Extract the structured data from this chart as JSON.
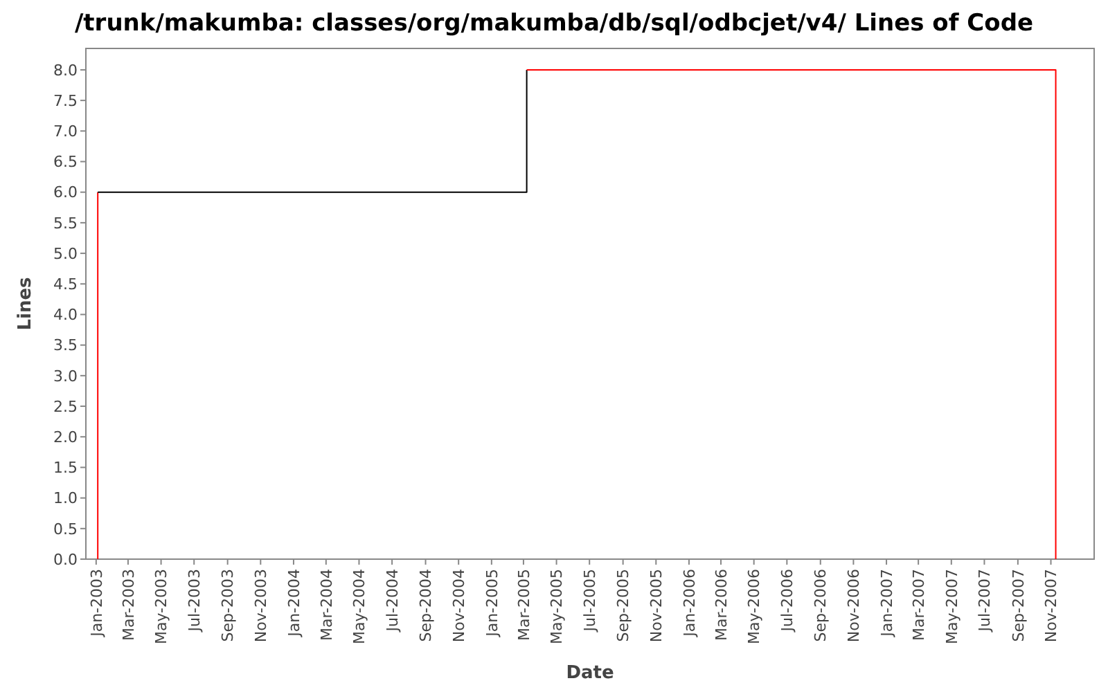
{
  "chart_data": {
    "type": "step",
    "title": "/trunk/makumba: classes/org/makumba/db/sql/odbcjet/v4/ Lines of Code",
    "xlabel": "Date",
    "ylabel": "Lines",
    "xlim": [
      "2002-12-13",
      "2008-01-20"
    ],
    "xticks": [
      {
        "value": "2003-01-01",
        "label": "Jan-2003"
      },
      {
        "value": "2003-03-01",
        "label": "Mar-2003"
      },
      {
        "value": "2003-05-01",
        "label": "May-2003"
      },
      {
        "value": "2003-07-01",
        "label": "Jul-2003"
      },
      {
        "value": "2003-09-01",
        "label": "Sep-2003"
      },
      {
        "value": "2003-11-01",
        "label": "Nov-2003"
      },
      {
        "value": "2004-01-01",
        "label": "Jan-2004"
      },
      {
        "value": "2004-03-01",
        "label": "Mar-2004"
      },
      {
        "value": "2004-05-01",
        "label": "May-2004"
      },
      {
        "value": "2004-07-01",
        "label": "Jul-2004"
      },
      {
        "value": "2004-09-01",
        "label": "Sep-2004"
      },
      {
        "value": "2004-11-01",
        "label": "Nov-2004"
      },
      {
        "value": "2005-01-01",
        "label": "Jan-2005"
      },
      {
        "value": "2005-03-01",
        "label": "Mar-2005"
      },
      {
        "value": "2005-05-01",
        "label": "May-2005"
      },
      {
        "value": "2005-07-01",
        "label": "Jul-2005"
      },
      {
        "value": "2005-09-01",
        "label": "Sep-2005"
      },
      {
        "value": "2005-11-01",
        "label": "Nov-2005"
      },
      {
        "value": "2006-01-01",
        "label": "Jan-2006"
      },
      {
        "value": "2006-03-01",
        "label": "Mar-2006"
      },
      {
        "value": "2006-05-01",
        "label": "May-2006"
      },
      {
        "value": "2006-07-01",
        "label": "Jul-2006"
      },
      {
        "value": "2006-09-01",
        "label": "Sep-2006"
      },
      {
        "value": "2006-11-01",
        "label": "Nov-2006"
      },
      {
        "value": "2007-01-01",
        "label": "Jan-2007"
      },
      {
        "value": "2007-03-01",
        "label": "Mar-2007"
      },
      {
        "value": "2007-05-01",
        "label": "May-2007"
      },
      {
        "value": "2007-07-01",
        "label": "Jul-2007"
      },
      {
        "value": "2007-09-01",
        "label": "Sep-2007"
      },
      {
        "value": "2007-11-01",
        "label": "Nov-2007"
      }
    ],
    "ylim": [
      0,
      8.35
    ],
    "yticks": [
      {
        "value": 0,
        "label": "0.0"
      },
      {
        "value": 0.5,
        "label": "0.5"
      },
      {
        "value": 1,
        "label": "1.0"
      },
      {
        "value": 1.5,
        "label": "1.5"
      },
      {
        "value": 2,
        "label": "2.0"
      },
      {
        "value": 2.5,
        "label": "2.5"
      },
      {
        "value": 3,
        "label": "3.0"
      },
      {
        "value": 3.5,
        "label": "3.5"
      },
      {
        "value": 4,
        "label": "4.0"
      },
      {
        "value": 4.5,
        "label": "4.5"
      },
      {
        "value": 5,
        "label": "5.0"
      },
      {
        "value": 5.5,
        "label": "5.5"
      },
      {
        "value": 6,
        "label": "6.0"
      },
      {
        "value": 6.5,
        "label": "6.5"
      },
      {
        "value": 7,
        "label": "7.0"
      },
      {
        "value": 7.5,
        "label": "7.5"
      },
      {
        "value": 8,
        "label": "8.0"
      }
    ],
    "series": [
      {
        "color": "#ff0000",
        "x": [
          "2003-01-04",
          "2003-01-04"
        ],
        "values": [
          0,
          6
        ]
      },
      {
        "color": "#000000",
        "x": [
          "2003-01-04",
          "2005-03-07"
        ],
        "values": [
          6,
          8
        ]
      },
      {
        "color": "#ff0000",
        "x": [
          "2005-03-07",
          "2007-11-10",
          "2007-11-10"
        ],
        "values": [
          8,
          8,
          0
        ]
      }
    ]
  }
}
